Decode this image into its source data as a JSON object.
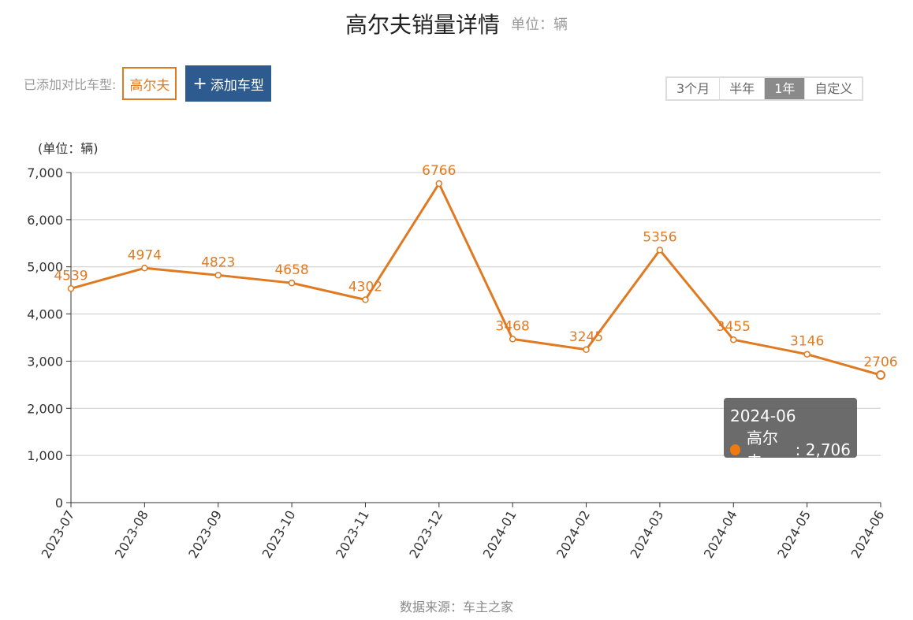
{
  "header": {
    "title": "高尔夫销量详情",
    "unit": "单位：辆"
  },
  "compare": {
    "label": "已添加对比车型:",
    "model": "高尔夫",
    "add_plus": "+",
    "add_label": "添加车型"
  },
  "range_tabs": [
    {
      "label": "3个月",
      "active": false
    },
    {
      "label": "半年",
      "active": false
    },
    {
      "label": "1年",
      "active": true
    },
    {
      "label": "自定义",
      "active": false
    }
  ],
  "tooltip": {
    "date": "2024-06",
    "series": "高尔夫",
    "value_text": "2,706"
  },
  "footer": {
    "source": "数据来源：车主之家"
  },
  "colors": {
    "accent": "#e07a22",
    "button": "#2e5b8f",
    "tooltip_dot": "#f07a10"
  },
  "chart_data": {
    "type": "line",
    "ylabel": "(单位：辆)",
    "categories": [
      "2023-07",
      "2023-08",
      "2023-09",
      "2023-10",
      "2023-11",
      "2023-12",
      "2024-01",
      "2024-02",
      "2024-03",
      "2024-04",
      "2024-05",
      "2024-06"
    ],
    "series": [
      {
        "name": "高尔夫",
        "color": "#e07a22",
        "values": [
          4539,
          4974,
          4823,
          4658,
          4302,
          6766,
          3468,
          3245,
          5356,
          3455,
          3146,
          2706
        ]
      }
    ],
    "ylim": [
      0,
      7000
    ],
    "yticks": [
      0,
      1000,
      2000,
      3000,
      4000,
      5000,
      6000,
      7000
    ],
    "ytick_labels": [
      "0",
      "1,000",
      "2,000",
      "3,000",
      "4,000",
      "5,000",
      "6,000",
      "7,000"
    ],
    "grid": true,
    "data_labels": true
  }
}
